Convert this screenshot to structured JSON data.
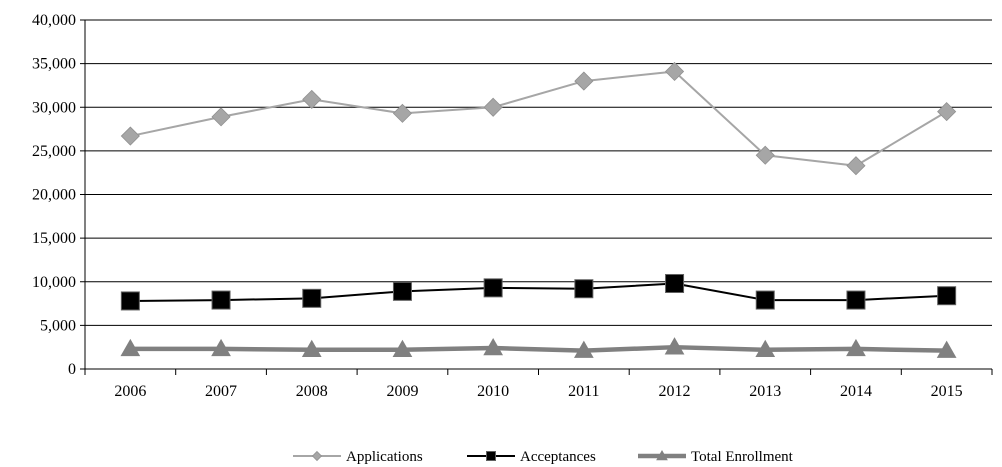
{
  "chart_data": {
    "type": "line",
    "title": "",
    "xlabel": "",
    "ylabel": "",
    "categories": [
      "2006",
      "2007",
      "2008",
      "2009",
      "2010",
      "2011",
      "2012",
      "2013",
      "2014",
      "2015"
    ],
    "ylim": [
      0,
      40000
    ],
    "yticks": [
      0,
      5000,
      10000,
      15000,
      20000,
      25000,
      30000,
      35000,
      40000
    ],
    "ytick_labels": [
      "0",
      "5,000",
      "10,000",
      "15,000",
      "20,000",
      "25,000",
      "30,000",
      "35,000",
      "40,000"
    ],
    "grid": "horizontal",
    "legend_position": "bottom",
    "series": [
      {
        "name": "Applications",
        "values": [
          26700,
          28900,
          30900,
          29300,
          30000,
          33000,
          34100,
          24500,
          23300,
          29500
        ],
        "color": "#a6a6a6",
        "marker": "diamond"
      },
      {
        "name": "Acceptances",
        "values": [
          7800,
          7900,
          8100,
          8900,
          9300,
          9200,
          9800,
          7900,
          7900,
          8400
        ],
        "color": "#000000",
        "marker": "square"
      },
      {
        "name": "Total Enrollment",
        "values": [
          2300,
          2300,
          2200,
          2200,
          2400,
          2100,
          2500,
          2200,
          2300,
          2100
        ],
        "color": "#808080",
        "marker": "triangle"
      }
    ]
  }
}
